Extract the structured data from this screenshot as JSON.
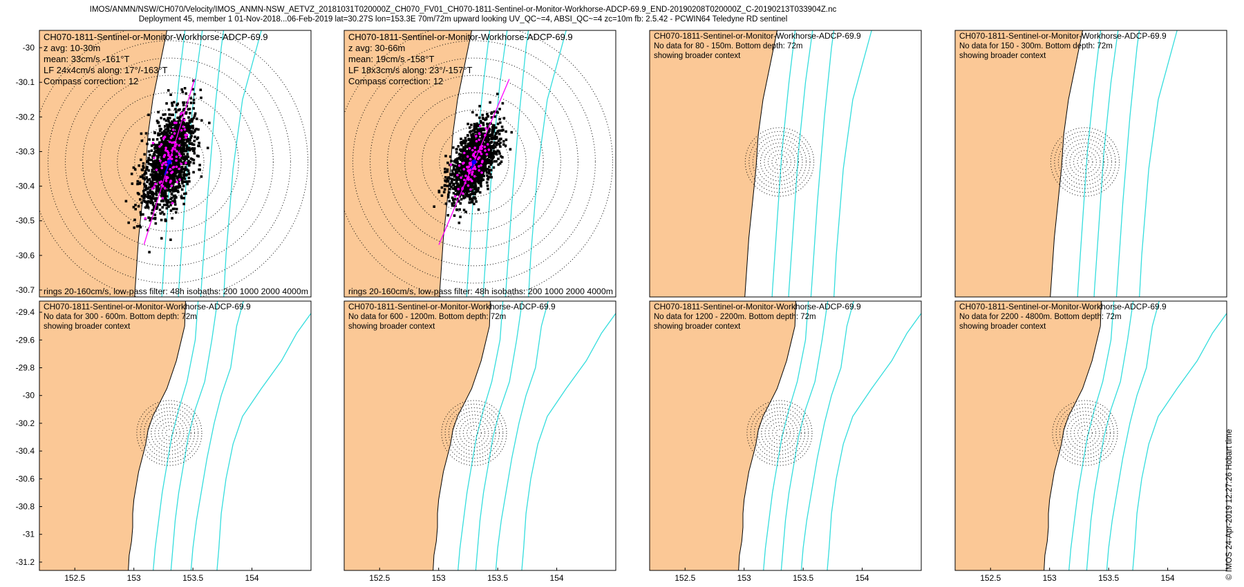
{
  "title": {
    "line1": "IMOS/ANMN/NSW/CH070/Velocity/IMOS_ANMN-NSW_AETVZ_20181031T020000Z_CH070_FV01_CH070-1811-Sentinel-or-Monitor-Workhorse-ADCP-69.9_END-20190208T020000Z_C-20190213T033904Z.nc",
    "line2": "Deployment 45, member 1 01-Nov-2018...06-Feb-2019 lat=30.27S lon=153.3E 70m/72m upward looking UV_QC~=4, ABSI_QC~=4 zc=10m fb: 2.5.42 - PCWIN64 Teledyne RD sentinel"
  },
  "side_note": "© IMOS 24-Apr-2019 12:27:26 Hobart time",
  "colors": {
    "land": "#fbc896",
    "isobath": "#33dddd",
    "ring": "#000000",
    "scatter": "#000000",
    "lowpass": "#ff00ff",
    "mean": "#0000ff",
    "axis": "#000000"
  },
  "chart_data": [
    {
      "type": "scatter",
      "name": "CH070-1811-Sentinel-or-Monitor-Workhorse-ADCP-69.9",
      "annotations": [
        "z avg: 10-30m",
        "mean: 33cm/s -161°T",
        "LF 24x4cm/s along: 17°/-163°T",
        "Compass correction: 12"
      ],
      "footer": "rings 20-160cm/s, low-pass filter: 48h isobaths: 200 1000 2000 4000m",
      "xlim": [
        152.2,
        154.5
      ],
      "ylim": [
        -30.72,
        -29.95
      ],
      "xticks": [],
      "xtick_labels": [],
      "yticks": [
        -30,
        -30.1,
        -30.2,
        -30.3,
        -30.4,
        -30.5,
        -30.6,
        -30.7
      ],
      "ytick_labels": [
        "-30",
        "-30.1",
        "-30.2",
        "-30.3",
        "-30.4",
        "-30.5",
        "-30.6",
        "-30.7"
      ],
      "center": [
        153.3,
        -30.33
      ],
      "ring_step_deg": 0.05,
      "rings": 8,
      "cloud": {
        "major": 0.17,
        "minor": 0.055,
        "angle_deg": 17
      },
      "major_axis_deg": 17,
      "major_axis_half_len": 0.25,
      "mean_current": {
        "speed_cm_s": 33,
        "direction_deg_T": -161
      }
    },
    {
      "type": "scatter",
      "name": "CH070-1811-Sentinel-or-Monitor-Workhorse-ADCP-69.9",
      "annotations": [
        "z avg: 30-66m",
        "mean: 19cm/s -158°T",
        "LF 18x3cm/s along: 23°/-157°T",
        "Compass correction: 12"
      ],
      "footer": "rings 20-160cm/s, low-pass filter: 48h isobaths: 200 1000 2000 4000m",
      "xlim": [
        152.2,
        154.5
      ],
      "ylim": [
        -30.72,
        -29.95
      ],
      "xticks": [],
      "xtick_labels": [],
      "yticks": [],
      "ytick_labels": [],
      "center": [
        153.3,
        -30.33
      ],
      "ring_step_deg": 0.05,
      "rings": 8,
      "cloud": {
        "major": 0.13,
        "minor": 0.045,
        "angle_deg": 23
      },
      "major_axis_deg": 23,
      "major_axis_half_len": 0.26,
      "mean_current": {
        "speed_cm_s": 19,
        "direction_deg_T": -158
      }
    },
    {
      "type": "scatter",
      "name": "CH070-1811-Sentinel-or-Monitor-Workhorse-ADCP-69.9",
      "annotations": [
        "No data for 80 - 150m. Bottom depth: 72m",
        "showing broader context"
      ],
      "footer": "",
      "xlim": [
        152.2,
        154.5
      ],
      "ylim": [
        -30.72,
        -29.95
      ],
      "xticks": [],
      "xtick_labels": [],
      "yticks": [],
      "ytick_labels": [],
      "center": [
        153.3,
        -30.33
      ],
      "ring_step_deg": 0.011,
      "rings": 9
    },
    {
      "type": "scatter",
      "name": "CH070-1811-Sentinel-or-Monitor-Workhorse-ADCP-69.9",
      "annotations": [
        "No data for 150 - 300m. Bottom depth: 72m",
        "showing broader context"
      ],
      "footer": "",
      "xlim": [
        152.2,
        154.5
      ],
      "ylim": [
        -30.72,
        -29.95
      ],
      "xticks": [],
      "xtick_labels": [],
      "yticks": [],
      "ytick_labels": [],
      "center": [
        153.3,
        -30.33
      ],
      "ring_step_deg": 0.011,
      "rings": 9
    },
    {
      "type": "scatter",
      "name": "CH070-1811-Sentinel-or-Monitor-Workhorse-ADCP-69.9",
      "annotations": [
        "No data for 300 - 600m. Bottom depth: 72m",
        "showing broader context"
      ],
      "footer": "",
      "xlim": [
        152.2,
        154.5
      ],
      "ylim": [
        -31.26,
        -29.32
      ],
      "xticks": [
        152.5,
        153,
        153.5,
        154
      ],
      "xtick_labels": [
        "152.5",
        "153",
        "153.5",
        "154"
      ],
      "yticks": [
        -29.4,
        -29.6,
        -29.8,
        -30,
        -30.2,
        -30.4,
        -30.6,
        -30.8,
        -31,
        -31.2
      ],
      "ytick_labels": [
        "-29.4",
        "-29.6",
        "-29.8",
        "-30",
        "-30.2",
        "-30.4",
        "-30.6",
        "-30.8",
        "-31",
        "-31.2"
      ],
      "center": [
        153.3,
        -30.27
      ],
      "ring_step_deg": 0.026,
      "rings": 9
    },
    {
      "type": "scatter",
      "name": "CH070-1811-Sentinel-or-Monitor-Workhorse-ADCP-69.9",
      "annotations": [
        "No data for 600 - 1200m. Bottom depth: 72m",
        "showing broader context"
      ],
      "footer": "",
      "xlim": [
        152.2,
        154.5
      ],
      "ylim": [
        -31.26,
        -29.32
      ],
      "xticks": [
        152.5,
        153,
        153.5,
        154
      ],
      "xtick_labels": [
        "152.5",
        "153",
        "153.5",
        "154"
      ],
      "yticks": [],
      "ytick_labels": [],
      "center": [
        153.3,
        -30.27
      ],
      "ring_step_deg": 0.026,
      "rings": 9
    },
    {
      "type": "scatter",
      "name": "CH070-1811-Sentinel-or-Monitor-Workhorse-ADCP-69.9",
      "annotations": [
        "No data for 1200 - 2200m. Bottom depth: 72m",
        "showing broader context"
      ],
      "footer": "",
      "xlim": [
        152.2,
        154.5
      ],
      "ylim": [
        -31.26,
        -29.32
      ],
      "xticks": [
        152.5,
        153,
        153.5,
        154
      ],
      "xtick_labels": [
        "152.5",
        "153",
        "153.5",
        "154"
      ],
      "yticks": [],
      "ytick_labels": [],
      "center": [
        153.3,
        -30.27
      ],
      "ring_step_deg": 0.026,
      "rings": 9
    },
    {
      "type": "scatter",
      "name": "CH070-1811-Sentinel-or-Monitor-Workhorse-ADCP-69.9",
      "annotations": [
        "No data for 2200 - 4800m. Bottom depth: 72m",
        "showing broader context"
      ],
      "footer": "",
      "xlim": [
        152.2,
        154.5
      ],
      "ylim": [
        -31.26,
        -29.32
      ],
      "xticks": [
        152.5,
        153,
        153.5,
        154
      ],
      "xtick_labels": [
        "152.5",
        "153",
        "153.5",
        "154"
      ],
      "yticks": [],
      "ytick_labels": [],
      "center": [
        153.3,
        -30.27
      ],
      "ring_step_deg": 0.026,
      "rings": 9
    }
  ]
}
